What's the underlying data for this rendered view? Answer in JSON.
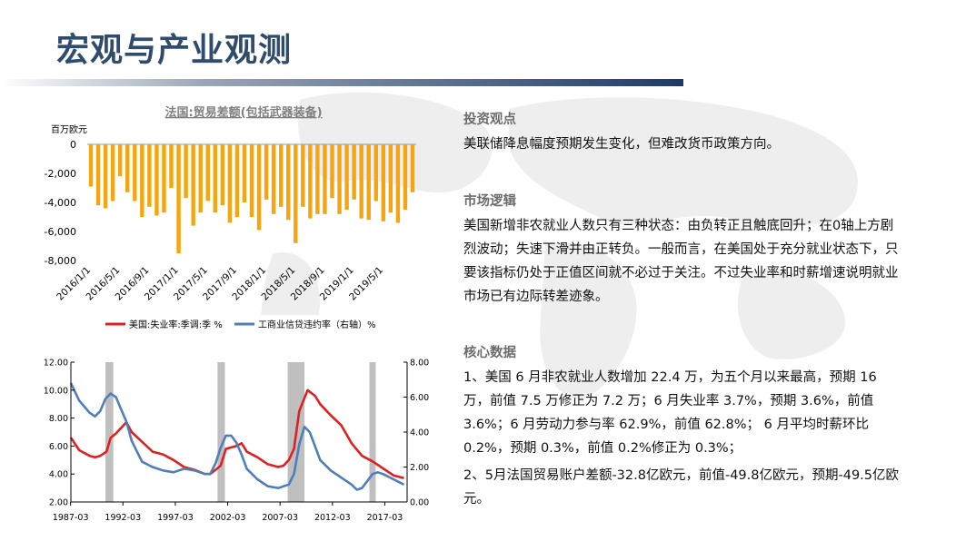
{
  "title": "宏观与产业观测",
  "colors": {
    "title": "#2f4b6e",
    "bar": "#f5a510",
    "red_series": "#e02020",
    "blue_series": "#4f7fb8",
    "band": "#bfbfbf"
  },
  "right": {
    "section1": {
      "heading": "投资观点",
      "text": "美联储降息幅度预期发生变化，但难改货币政策方向。"
    },
    "section2": {
      "heading": "市场逻辑",
      "text": "美国新增非农就业人数只有三种状态：由负转正且触底回升；在0轴上方剧烈波动；失速下滑并由正转负。一般而言，在美国处于充分就业状态下，只要该指标仍处于正值区间就不必过于关注。不过失业率和时薪增速说明就业市场已有边际转差迹象。"
    },
    "section3": {
      "heading": "核心数据",
      "item1": "1、美国 6 月非农就业人数增加 22.4 万，为五个月以来最高，预期 16 万，前值 7.5 万修正为 7.2 万；6 月失业率 3.7%，预期 3.6%，前值 3.6%；6 月劳动力参与率 62.9%，前值 62.8%； 6 月平均时薪环比 0.2%，预期 0.3%，前值 0.2%修正为 0.3%；",
      "item2": "2、5月法国贸易账户差额-32.8亿欧元，前值-49.8亿欧元，预期-49.5亿欧元。"
    }
  },
  "chart_data": [
    {
      "type": "bar",
      "title": "法国:贸易差额(包括武器装备)",
      "ylabel": "百万欧元",
      "ylim": [
        -8000,
        0
      ],
      "yticks": [
        0,
        -2000,
        -4000,
        -6000,
        -8000
      ],
      "ytick_labels": [
        "0",
        "-2,000",
        "-4,000",
        "-6,000",
        "-8,000"
      ],
      "xtick_labels": [
        "2016/1/1",
        "2016/5/1",
        "2016/9/1",
        "2017/1/1",
        "2017/5/1",
        "2017/9/1",
        "2018/1/1",
        "2018/5/1",
        "2018/9/1",
        "2019/1/1",
        "2019/5/1"
      ],
      "values": [
        -2900,
        -4200,
        -4400,
        -3900,
        -2200,
        -3300,
        -3900,
        -5000,
        -4300,
        -4900,
        -4700,
        -3000,
        -7500,
        -3700,
        -5600,
        -4700,
        -3900,
        -4700,
        -4200,
        -5400,
        -5000,
        -4000,
        -5000,
        -5900,
        -3800,
        -4800,
        -4300,
        -5200,
        -6800,
        -4300,
        -5100,
        -4800,
        -4800,
        -3700,
        -4800,
        -4500,
        -3800,
        -5100,
        -5200,
        -3900,
        -5300,
        -4700,
        -5400,
        -4500,
        -3300
      ]
    },
    {
      "type": "line",
      "legend": [
        "美国:失业率:季调:季",
        "工商业信贷违约率（右轴）%"
      ],
      "legend_units": "%",
      "xtick_labels": [
        "1987-03",
        "1992-03",
        "1997-03",
        "2002-03",
        "2007-03",
        "2012-03",
        "2017-03"
      ],
      "xlim": [
        1987.2,
        2019.3
      ],
      "ylim_left": [
        2,
        12
      ],
      "yticks_left": [
        "2.00",
        "4.00",
        "6.00",
        "8.00",
        "10.00",
        "12.00"
      ],
      "ylim_right": [
        0,
        8
      ],
      "yticks_right": [
        "0.00",
        "2.00",
        "4.00",
        "6.00",
        "8.00"
      ],
      "recession_bands": [
        [
          1990.5,
          1991.25
        ],
        [
          2001.2,
          2001.9
        ],
        [
          2007.9,
          2009.5
        ],
        [
          2015.7,
          2016.3
        ]
      ],
      "series": [
        {
          "name": "美国:失业率:季调:季",
          "axis": "left",
          "x": [
            1987.2,
            1988,
            1989,
            1989.5,
            1990,
            1990.6,
            1991,
            1991.5,
            1992,
            1992.5,
            1993,
            1994,
            1995,
            1996,
            1997,
            1998,
            1999,
            2000,
            2000.5,
            2001,
            2001.5,
            2002,
            2002.5,
            2003,
            2003.5,
            2004,
            2005,
            2006,
            2007,
            2007.5,
            2008,
            2008.5,
            2009,
            2009.8,
            2010.5,
            2011,
            2012,
            2013,
            2014,
            2015,
            2016,
            2017,
            2018,
            2019
          ],
          "values": [
            6.6,
            5.7,
            5.3,
            5.2,
            5.3,
            5.6,
            6.6,
            6.9,
            7.3,
            7.7,
            7.0,
            6.3,
            5.6,
            5.4,
            5.0,
            4.5,
            4.3,
            4.0,
            4.0,
            4.3,
            4.6,
            5.8,
            5.9,
            6.0,
            6.2,
            5.6,
            5.2,
            4.7,
            4.5,
            4.6,
            5.0,
            5.8,
            8.5,
            10.0,
            9.6,
            9.0,
            8.2,
            7.5,
            6.2,
            5.3,
            4.9,
            4.4,
            3.9,
            3.7
          ]
        },
        {
          "name": "工商业信贷违约率（右轴）%",
          "axis": "right",
          "x": [
            1987.2,
            1988,
            1989,
            1989.5,
            1990,
            1990.5,
            1991,
            1991.5,
            1992,
            1992.5,
            1993,
            1993.5,
            1994,
            1995,
            1996,
            1997,
            1998,
            1999,
            2000,
            2000.5,
            2001,
            2001.5,
            2002,
            2002.5,
            2003,
            2003.5,
            2004,
            2005,
            2006,
            2007,
            2008,
            2008.5,
            2009,
            2009.5,
            2010,
            2010.5,
            2011,
            2012,
            2013,
            2014,
            2014.5,
            2015,
            2016,
            2016.5,
            2017,
            2018,
            2019
          ],
          "values": [
            6.8,
            5.8,
            5.1,
            4.9,
            5.2,
            5.9,
            6.2,
            6.0,
            5.3,
            4.6,
            3.5,
            2.9,
            2.3,
            2.0,
            1.8,
            1.7,
            1.9,
            1.8,
            1.6,
            1.6,
            2.2,
            3.1,
            3.8,
            3.8,
            3.4,
            2.7,
            1.9,
            1.3,
            0.9,
            0.8,
            1.0,
            1.6,
            3.3,
            4.3,
            4.0,
            3.2,
            2.4,
            1.8,
            1.4,
            1.0,
            0.7,
            0.8,
            1.6,
            1.7,
            1.6,
            1.3,
            1.0
          ]
        }
      ]
    }
  ]
}
